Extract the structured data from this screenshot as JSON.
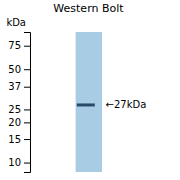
{
  "chart_data": {
    "type": "blot",
    "title": "Western Bolt",
    "ylabel": "kDa",
    "values": [
      27
    ],
    "value_labels": [
      "←27kDa"
    ],
    "data_labels": true,
    "color": "#2a4a6a",
    "log": "y",
    "ylim": [
      8.5,
      95
    ],
    "yticks": [
      10,
      15,
      20,
      25,
      37,
      50,
      75
    ]
  }
}
